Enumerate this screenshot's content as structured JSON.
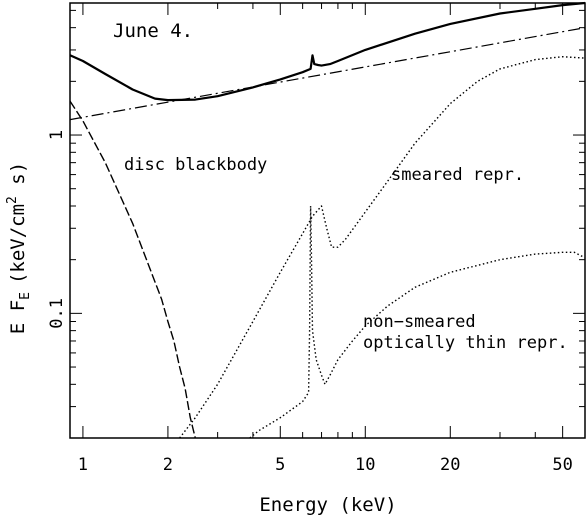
{
  "chart_data": {
    "type": "line",
    "title": "June 4.",
    "xlabel": "Energy (keV)",
    "ylabel": "E F",
    "ylabel_sub": "E",
    "ylabel_unit": "(keV/cm",
    "ylabel_unit_sup": "2",
    "ylabel_unit_end": " s)",
    "xscale": "log",
    "yscale": "log",
    "xlim": [
      0.9,
      60
    ],
    "ylim": [
      0.02,
      5.5
    ],
    "grid": false,
    "x_ticks": [
      {
        "v": 1,
        "label": "1"
      },
      {
        "v": 2,
        "label": "2"
      },
      {
        "v": 5,
        "label": "5"
      },
      {
        "v": 10,
        "label": "10"
      },
      {
        "v": 20,
        "label": "20"
      },
      {
        "v": 50,
        "label": "50"
      }
    ],
    "y_ticks": [
      {
        "v": 0.1,
        "label": "0.1"
      },
      {
        "v": 1,
        "label": "1"
      }
    ],
    "annotations": {
      "disc": "disc blackbody",
      "smeared": "smeared repr.",
      "nonsmeared_1": "non−smeared",
      "nonsmeared_2": "optically thin repr."
    },
    "series": [
      {
        "id": "total",
        "style": "solid",
        "x": [
          0.9,
          1.0,
          1.2,
          1.5,
          1.8,
          2.0,
          2.5,
          3.0,
          4.0,
          5.0,
          6.0,
          6.4,
          6.5,
          6.6,
          6.8,
          7.0,
          7.5,
          8.0,
          10,
          15,
          20,
          30,
          40,
          50,
          60
        ],
        "y": [
          2.8,
          2.6,
          2.2,
          1.8,
          1.6,
          1.57,
          1.58,
          1.65,
          1.85,
          2.05,
          2.25,
          2.35,
          2.8,
          2.5,
          2.47,
          2.45,
          2.5,
          2.6,
          3.0,
          3.7,
          4.2,
          4.8,
          5.1,
          5.35,
          5.5
        ]
      },
      {
        "id": "powerlaw",
        "style": "dash-dot",
        "x": [
          0.9,
          60
        ],
        "y": [
          1.22,
          4.0
        ]
      },
      {
        "id": "disc_blackbody",
        "style": "dashed",
        "x": [
          0.9,
          1.0,
          1.2,
          1.5,
          1.7,
          1.9,
          2.0,
          2.1,
          2.2,
          2.3,
          2.4,
          2.5
        ],
        "y": [
          1.55,
          1.2,
          0.7,
          0.32,
          0.19,
          0.12,
          0.09,
          0.07,
          0.05,
          0.038,
          0.026,
          0.02
        ]
      },
      {
        "id": "smeared_repr",
        "style": "dotted",
        "x": [
          2.2,
          2.5,
          3.0,
          4.0,
          5.0,
          6.0,
          6.5,
          6.8,
          7.0,
          7.3,
          7.6,
          8.0,
          8.5,
          10,
          12,
          15,
          20,
          25,
          30,
          40,
          50,
          60
        ],
        "y": [
          0.02,
          0.026,
          0.04,
          0.09,
          0.17,
          0.28,
          0.35,
          0.38,
          0.4,
          0.3,
          0.235,
          0.235,
          0.26,
          0.37,
          0.55,
          0.9,
          1.5,
          2.0,
          2.35,
          2.65,
          2.75,
          2.7
        ]
      },
      {
        "id": "nonsmeared_repr",
        "style": "dotted",
        "x": [
          3.9,
          4.2,
          5.0,
          6.0,
          6.3,
          6.35,
          6.4,
          6.45,
          6.5,
          6.7,
          7.0,
          7.2,
          7.5,
          8.0,
          9.0,
          10,
          12,
          15,
          20,
          30,
          40,
          50,
          55,
          60
        ],
        "y": [
          0.02,
          0.022,
          0.026,
          0.032,
          0.036,
          0.08,
          0.4,
          0.2,
          0.08,
          0.055,
          0.045,
          0.04,
          0.045,
          0.055,
          0.07,
          0.085,
          0.11,
          0.14,
          0.17,
          0.2,
          0.215,
          0.22,
          0.22,
          0.205
        ]
      }
    ]
  }
}
